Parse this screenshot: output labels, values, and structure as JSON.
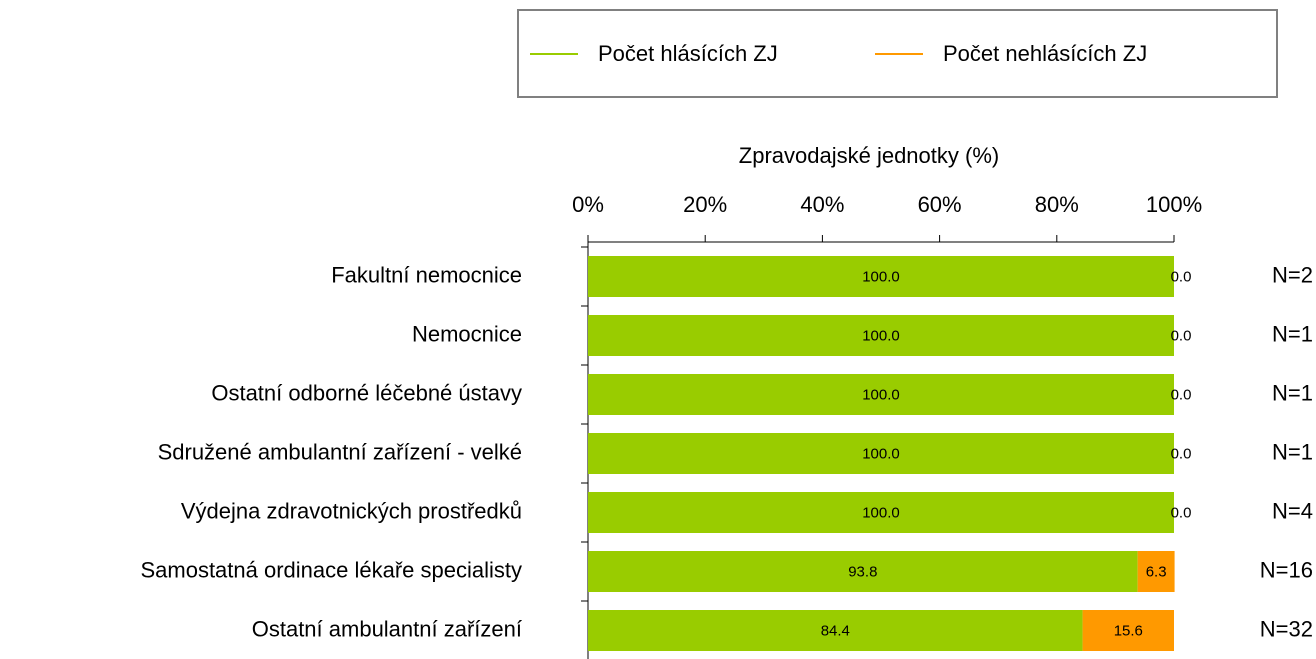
{
  "chart_data": {
    "type": "stacked_barh",
    "x_label": "Zpravodajské jednotky (%)",
    "categories": [
      "Fakultní nemocnice",
      "Nemocnice",
      "Ostatní odborné léčebné ústavy",
      "Sdružené ambulantní zařízení - velké",
      "Výdejna zdravotnických prostředků",
      "Samostatná ordinace lékaře specialisty",
      "Ostatní ambulantní zařízení"
    ],
    "series": [
      {
        "name": "Počet hlásících ZJ",
        "color": "#99cc00",
        "values": [
          100,
          100,
          100,
          100,
          100,
          93.8,
          84.4
        ],
        "value_labels": [
          "100.0",
          "100.0",
          "100.0",
          "100.0",
          "100.0",
          "93.8",
          "84.4"
        ]
      },
      {
        "name": "Počet nehlásících ZJ",
        "color": "#ff9900",
        "values": [
          0,
          0,
          0,
          0,
          0,
          6.3,
          15.6
        ],
        "value_labels": [
          "0.0",
          "0.0",
          "0.0",
          "0.0",
          "0.0",
          "6.3",
          "15.6"
        ]
      }
    ],
    "annotations": [
      "N=2",
      "N=1",
      "N=1",
      "N=1",
      "N=4",
      "N=16",
      "N=32"
    ],
    "xlim": [
      0,
      100
    ],
    "xticks": [
      {
        "value": 0,
        "label": "0%"
      },
      {
        "value": 20,
        "label": "20%"
      },
      {
        "value": 40,
        "label": "40%"
      },
      {
        "value": 60,
        "label": "60%"
      },
      {
        "value": 80,
        "label": "80%"
      },
      {
        "value": 100,
        "label": "100%"
      }
    ],
    "legend": "top"
  }
}
